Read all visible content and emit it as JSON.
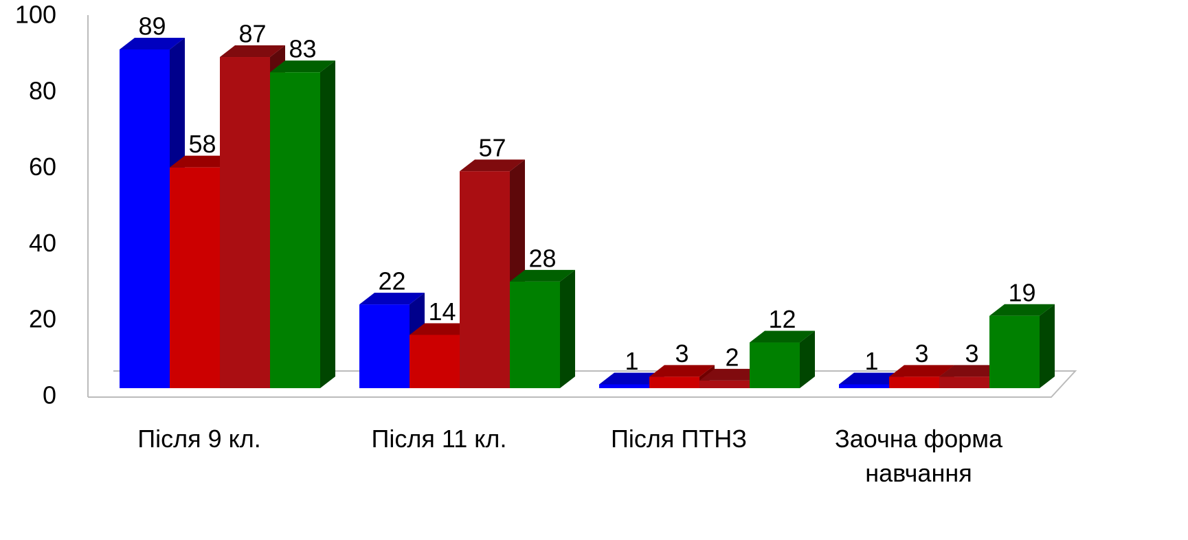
{
  "chart_data": {
    "type": "bar3d",
    "categories": [
      "Після 9 кл.",
      "Після 11 кл.",
      "Після ПТНЗ",
      "Заочна форма навчання"
    ],
    "series": [
      {
        "color": "#0000ff",
        "values": [
          89,
          22,
          1,
          1
        ]
      },
      {
        "color": "#cc0000",
        "values": [
          58,
          14,
          3,
          3
        ]
      },
      {
        "color": "#aa0e12",
        "values": [
          87,
          57,
          2,
          3
        ]
      },
      {
        "color": "#008000",
        "values": [
          83,
          28,
          12,
          19
        ]
      }
    ],
    "ylim": [
      0,
      100
    ],
    "yticks": [
      0,
      20,
      40,
      60,
      80,
      100
    ],
    "grid": false
  }
}
